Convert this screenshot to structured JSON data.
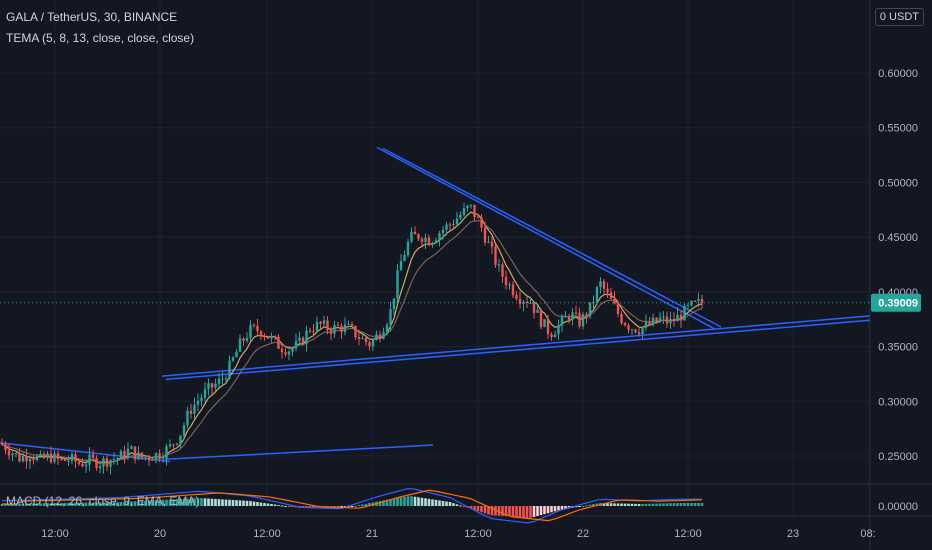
{
  "header": {
    "symbol_line": "GALA / TetherUS, 30, BINANCE",
    "indicator_line": "TEMA (5, 8, 13, close, close, close)",
    "macd_line": "MACD (12, 26, close, 9, EMA, EMA)",
    "currency": "0 USDT"
  },
  "colors": {
    "background": "#131722",
    "up": "#26a69a",
    "down": "#ef5350",
    "trendline": "#2962ff",
    "tema_fast": "#f5c26b",
    "tema_slow": "#8d6e63",
    "price_tag": "#26a69a",
    "axis_text": "#b2b5be",
    "grid": "#1e222d"
  },
  "chart_data": {
    "type": "candlestick",
    "title": "GALA / TetherUS, 30, BINANCE",
    "y_axis": {
      "ticks": [
        "0.60000",
        "0.55000",
        "0.50000",
        "0.45000",
        "0.40000",
        "0.35000",
        "0.30000",
        "0.25000"
      ],
      "range": [
        0.225,
        0.63
      ]
    },
    "x_axis": {
      "ticks": [
        "12:00",
        "20",
        "12:00",
        "21",
        "12:00",
        "22",
        "12:00",
        "23",
        "08:"
      ]
    },
    "last_price": "0.39009",
    "price_path": [
      [
        0,
        0.262
      ],
      [
        10,
        0.255
      ],
      [
        20,
        0.248
      ],
      [
        30,
        0.252
      ],
      [
        40,
        0.246
      ],
      [
        50,
        0.25
      ],
      [
        60,
        0.245
      ],
      [
        70,
        0.247
      ],
      [
        80,
        0.243
      ],
      [
        90,
        0.246
      ],
      [
        100,
        0.244
      ],
      [
        110,
        0.247
      ],
      [
        120,
        0.249
      ],
      [
        130,
        0.256
      ],
      [
        140,
        0.248
      ],
      [
        150,
        0.25
      ],
      [
        160,
        0.252
      ],
      [
        170,
        0.258
      ],
      [
        180,
        0.27
      ],
      [
        190,
        0.292
      ],
      [
        200,
        0.303
      ],
      [
        210,
        0.312
      ],
      [
        220,
        0.318
      ],
      [
        230,
        0.332
      ],
      [
        240,
        0.352
      ],
      [
        250,
        0.365
      ],
      [
        260,
        0.365
      ],
      [
        270,
        0.358
      ],
      [
        280,
        0.35
      ],
      [
        290,
        0.347
      ],
      [
        300,
        0.353
      ],
      [
        310,
        0.367
      ],
      [
        320,
        0.37
      ],
      [
        330,
        0.366
      ],
      [
        340,
        0.368
      ],
      [
        350,
        0.366
      ],
      [
        360,
        0.358
      ],
      [
        370,
        0.352
      ],
      [
        380,
        0.363
      ],
      [
        390,
        0.38
      ],
      [
        400,
        0.425
      ],
      [
        410,
        0.449
      ],
      [
        420,
        0.452
      ],
      [
        430,
        0.447
      ],
      [
        440,
        0.455
      ],
      [
        450,
        0.462
      ],
      [
        460,
        0.47
      ],
      [
        470,
        0.478
      ],
      [
        480,
        0.462
      ],
      [
        490,
        0.44
      ],
      [
        500,
        0.418
      ],
      [
        510,
        0.405
      ],
      [
        520,
        0.395
      ],
      [
        530,
        0.392
      ],
      [
        540,
        0.375
      ],
      [
        550,
        0.362
      ],
      [
        560,
        0.37
      ],
      [
        570,
        0.38
      ],
      [
        580,
        0.372
      ],
      [
        590,
        0.385
      ],
      [
        600,
        0.408
      ],
      [
        610,
        0.393
      ],
      [
        620,
        0.377
      ],
      [
        630,
        0.368
      ],
      [
        640,
        0.366
      ],
      [
        650,
        0.37
      ],
      [
        660,
        0.375
      ],
      [
        670,
        0.372
      ],
      [
        680,
        0.378
      ],
      [
        690,
        0.386
      ],
      [
        700,
        0.39
      ],
      [
        705,
        0.39
      ]
    ],
    "trendlines": [
      {
        "from": [
          377,
          0.532
        ],
        "to": [
          715,
          0.366
        ]
      },
      {
        "from": [
          383,
          0.531
        ],
        "to": [
          721,
          0.368
        ]
      },
      {
        "from": [
          162,
          0.323
        ],
        "to": [
          870,
          0.378
        ]
      },
      {
        "from": [
          166,
          0.32
        ],
        "to": [
          870,
          0.374
        ]
      },
      {
        "from": [
          0,
          0.262
        ],
        "to": [
          170,
          0.245
        ]
      },
      {
        "from": [
          165,
          0.247
        ],
        "to": [
          433,
          0.26
        ]
      }
    ],
    "macd": {
      "zero_line": "0.00000",
      "histogram_path": [
        [
          0,
          2
        ],
        [
          60,
          3
        ],
        [
          120,
          4
        ],
        [
          160,
          6
        ],
        [
          200,
          8
        ],
        [
          250,
          5
        ],
        [
          300,
          -2
        ],
        [
          340,
          -3
        ],
        [
          380,
          5
        ],
        [
          410,
          10
        ],
        [
          450,
          4
        ],
        [
          490,
          -9
        ],
        [
          530,
          -12
        ],
        [
          560,
          -4
        ],
        [
          600,
          3
        ],
        [
          640,
          2
        ],
        [
          680,
          3
        ],
        [
          705,
          3
        ]
      ]
    }
  }
}
